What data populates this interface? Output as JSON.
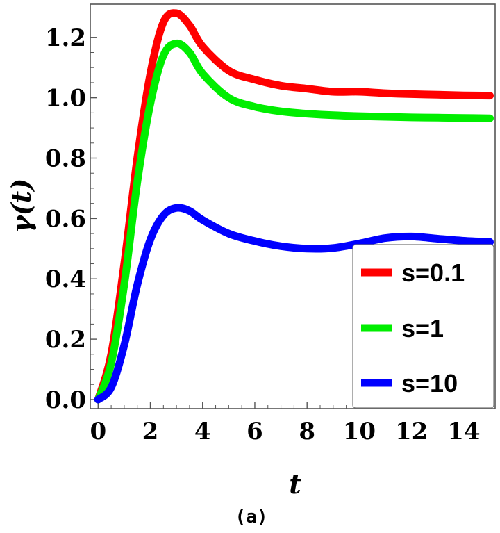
{
  "chart_data": {
    "type": "line",
    "xlabel": "t",
    "ylabel": "γ(t)",
    "caption": "(a)",
    "xlim": [
      -0.3,
      15.2
    ],
    "ylim": [
      -0.03,
      1.31
    ],
    "xticks": [
      0,
      2,
      4,
      6,
      8,
      10,
      12,
      14
    ],
    "yticks": [
      0.0,
      0.2,
      0.4,
      0.6,
      0.8,
      1.0,
      1.2
    ],
    "xtick_labels": [
      "0",
      "2",
      "4",
      "6",
      "8",
      "10",
      "12",
      "14"
    ],
    "ytick_labels": [
      "0.0",
      "0.2",
      "0.4",
      "0.6",
      "0.8",
      "1.0",
      "1.2"
    ],
    "grid": false,
    "legend_position": "bottom-right",
    "series": [
      {
        "name": "s=0.1",
        "color": "#ff0000",
        "x": [
          0,
          0.5,
          1,
          1.5,
          2,
          2.5,
          3,
          3.5,
          4,
          5,
          6,
          7,
          8,
          9,
          10,
          11,
          12,
          13,
          14,
          15
        ],
        "y": [
          0.0,
          0.15,
          0.45,
          0.8,
          1.08,
          1.25,
          1.28,
          1.24,
          1.17,
          1.09,
          1.06,
          1.04,
          1.03,
          1.02,
          1.02,
          1.015,
          1.012,
          1.01,
          1.008,
          1.007
        ]
      },
      {
        "name": "s=1",
        "color": "#00ee00",
        "x": [
          0,
          0.5,
          1,
          1.5,
          2,
          2.5,
          3,
          3.5,
          4,
          5,
          6,
          7,
          8,
          9,
          10,
          11,
          12,
          13,
          14,
          15
        ],
        "y": [
          0.0,
          0.12,
          0.38,
          0.72,
          0.98,
          1.14,
          1.18,
          1.15,
          1.08,
          1.0,
          0.97,
          0.955,
          0.947,
          0.942,
          0.939,
          0.937,
          0.935,
          0.934,
          0.933,
          0.932
        ]
      },
      {
        "name": "s=10",
        "color": "#0000ff",
        "x": [
          0,
          0.5,
          1,
          1.5,
          2,
          2.5,
          3,
          3.5,
          4,
          5,
          6,
          7,
          8,
          9,
          10,
          11,
          12,
          13,
          14,
          15
        ],
        "y": [
          0.0,
          0.04,
          0.18,
          0.38,
          0.53,
          0.61,
          0.635,
          0.625,
          0.595,
          0.55,
          0.525,
          0.508,
          0.5,
          0.502,
          0.517,
          0.535,
          0.54,
          0.533,
          0.526,
          0.522
        ]
      }
    ]
  }
}
